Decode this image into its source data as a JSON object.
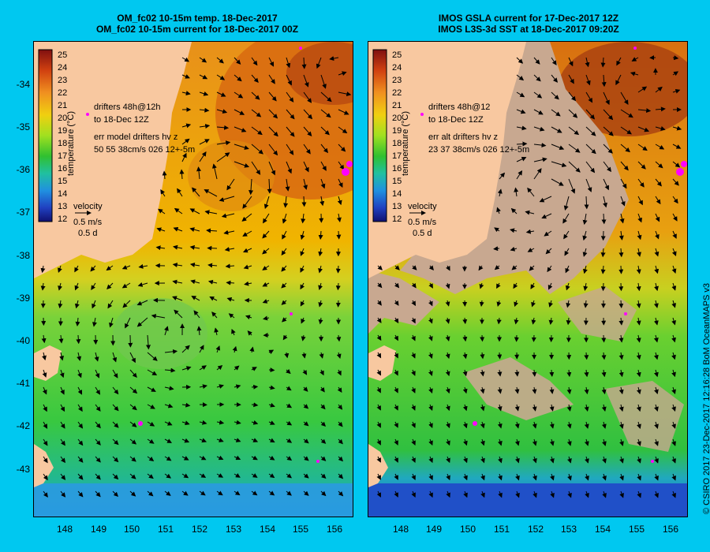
{
  "panels": [
    {
      "title1": "OM_fc02 10-15m temp. 18-Dec-2017",
      "title2": "OM_fc02 10-15m current for 18-Dec-2017 00Z",
      "legend_drifters_1": "drifters 48h@12h",
      "legend_drifters_2": "to 18-Dec 12Z",
      "legend_err_1": "err model drifters hv z",
      "legend_err_2": "50 55 38cm/s 026 12+-5m",
      "velocity_label": "velocity",
      "velocity_scale": "0.5 m/s",
      "velocity_time": "0.5 d",
      "colorbar_title": "temperature (°C)"
    },
    {
      "title1": "IMOS GSLA current for 17-Dec-2017 12Z",
      "title2": "IMOS L3S-3d SST at 18-Dec-2017 09:20Z",
      "legend_drifters_1": "drifters 48h@12",
      "legend_drifters_2": "to 18-Dec 12Z",
      "legend_err_1": "err alt drifters hv z",
      "legend_err_2": "23 37 38cm/s 026 12+-5m",
      "velocity_label": "velocity",
      "velocity_scale": "0.5 m/s",
      "velocity_time": "0.5 d",
      "colorbar_title": "temperature (°C)"
    }
  ],
  "colorbar_ticks": [
    "25",
    "24",
    "23",
    "22",
    "21",
    "20",
    "19",
    "18",
    "17",
    "16",
    "15",
    "14",
    "13",
    "12"
  ],
  "y_ticks": [
    "-34",
    "-35",
    "-36",
    "-37",
    "-38",
    "-39",
    "-40",
    "-41",
    "-42",
    "-43"
  ],
  "x_ticks": [
    "148",
    "149",
    "150",
    "151",
    "152",
    "153",
    "154",
    "155",
    "156"
  ],
  "credit": "© CSIRO 2017   23-Dec-2017 12:16:28 BoM OceanMAPS v3",
  "colors": {
    "background": "#00c8f0",
    "land": "#f8c8a0",
    "cloud": "#c8a890"
  }
}
